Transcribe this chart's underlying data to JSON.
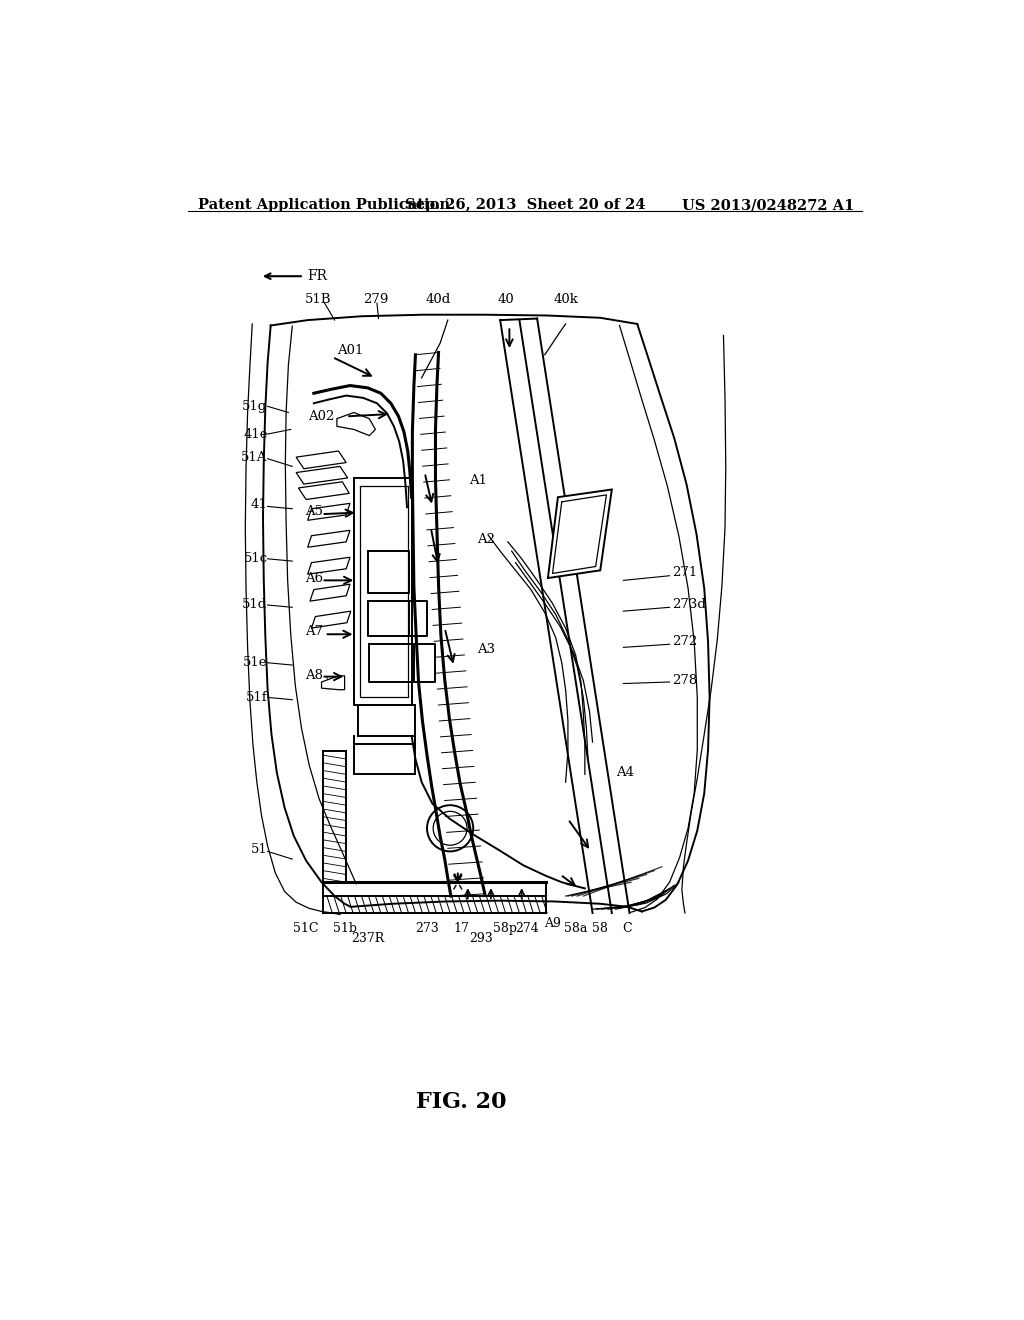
{
  "bg_color": "#ffffff",
  "line_color": "#000000",
  "title": "FIG. 20",
  "header_left": "Patent Application Publication",
  "header_mid": "Sep. 26, 2013  Sheet 20 of 24",
  "header_right": "US 2013/0248272 A1",
  "header_fontsize": 10.5,
  "title_fontsize": 16
}
